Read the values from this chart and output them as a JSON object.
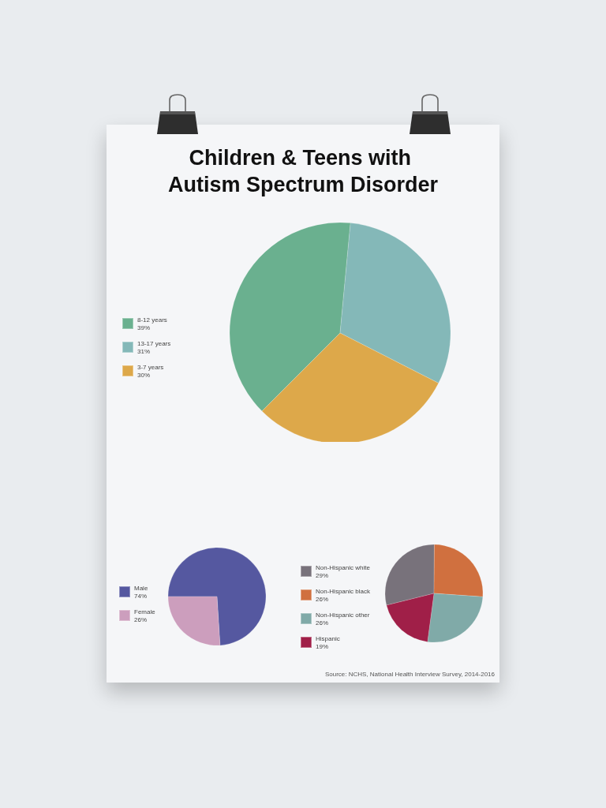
{
  "chart_data": [
    {
      "type": "pie",
      "title": "Children & Teens with Autism Spectrum Disorder",
      "categories": [
        "8-12 years",
        "13-17 years",
        "3-7 years"
      ],
      "values": [
        39,
        31,
        30
      ],
      "colors": [
        "#6ab08f",
        "#84b8b8",
        "#dda84a"
      ],
      "value_labels": [
        "39%",
        "31%",
        "30%"
      ],
      "legend": "left"
    },
    {
      "type": "pie",
      "categories": [
        "Male",
        "Female"
      ],
      "values": [
        74,
        26
      ],
      "colors": [
        "#5558a0",
        "#cc9ebd"
      ],
      "value_labels": [
        "74%",
        "26%"
      ],
      "legend": "left"
    },
    {
      "type": "pie",
      "categories": [
        "Non-Hispanic white",
        "Non-Hispanic black",
        "Non-Hispanic other",
        "Hispanic"
      ],
      "values": [
        29,
        26,
        26,
        19
      ],
      "colors": [
        "#78727b",
        "#d0703f",
        "#80aaa8",
        "#a01f48"
      ],
      "value_labels": [
        "29%",
        "26%",
        "26%",
        "19%"
      ],
      "legend": "left",
      "annotations": [
        "Source: NCHS, National Health Interview Survey, 2014-2016"
      ]
    }
  ]
}
